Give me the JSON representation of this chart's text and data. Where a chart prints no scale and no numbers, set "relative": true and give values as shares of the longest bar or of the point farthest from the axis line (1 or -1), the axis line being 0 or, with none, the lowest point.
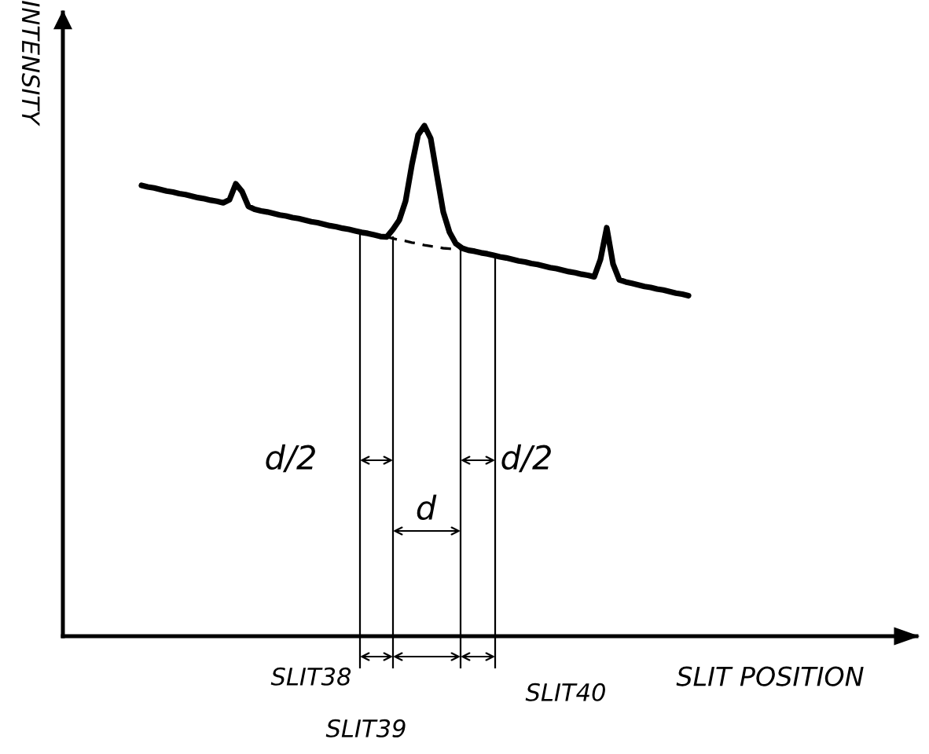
{
  "chart_data": {
    "type": "line",
    "relative": true,
    "xlabel": "SLIT POSITION",
    "ylabel": "INTENSITY",
    "marker": "none",
    "grid": false,
    "legend": false,
    "categories": [
      null,
      null,
      null,
      null,
      null,
      null,
      null,
      null,
      null,
      null,
      null,
      null,
      null,
      null,
      null,
      null,
      null,
      null,
      null,
      null,
      null,
      null,
      null,
      null,
      null,
      null,
      null,
      null,
      null,
      null,
      null,
      null,
      null,
      null,
      null,
      null,
      null,
      null,
      null,
      null,
      null,
      null,
      null,
      null,
      null,
      null,
      null,
      null,
      null,
      null,
      null,
      null,
      null,
      null,
      null,
      null,
      null,
      null,
      null,
      null,
      null,
      null,
      null,
      null,
      null,
      null,
      null,
      null,
      null,
      null,
      null,
      null,
      null,
      null,
      null,
      null,
      null,
      null,
      null,
      null,
      null,
      null,
      null,
      null,
      null,
      null,
      null,
      null
    ],
    "series": [
      {
        "color": "#000000",
        "line_style": "solid",
        "values": [
          0.883,
          0.88,
          0.878,
          0.875,
          0.872,
          0.87,
          0.867,
          0.865,
          0.862,
          0.859,
          0.857,
          0.854,
          0.852,
          0.849,
          0.855,
          0.886,
          0.871,
          0.842,
          0.836,
          0.833,
          0.831,
          0.828,
          0.825,
          0.823,
          0.82,
          0.818,
          0.815,
          0.812,
          0.81,
          0.807,
          0.804,
          0.802,
          0.799,
          0.797,
          0.794,
          0.791,
          0.789,
          0.786,
          0.783,
          0.782,
          0.797,
          0.815,
          0.852,
          0.923,
          0.982,
          1,
          0.975,
          0.902,
          0.831,
          0.791,
          0.769,
          0.76,
          0.756,
          0.754,
          0.751,
          0.749,
          0.746,
          0.743,
          0.741,
          0.738,
          0.735,
          0.733,
          0.73,
          0.728,
          0.725,
          0.722,
          0.72,
          0.717,
          0.714,
          0.712,
          0.709,
          0.707,
          0.704,
          0.738,
          0.8,
          0.729,
          0.698,
          0.694,
          0.691,
          0.688,
          0.685,
          0.683,
          0.68,
          0.678,
          0.675,
          0.672,
          0.67,
          0.667
        ]
      },
      {
        "color": "#000000",
        "line_style": "dashed",
        "values": [
          null,
          null,
          null,
          null,
          null,
          null,
          null,
          null,
          null,
          null,
          null,
          null,
          null,
          null,
          null,
          null,
          null,
          null,
          null,
          null,
          null,
          null,
          null,
          null,
          null,
          null,
          null,
          null,
          null,
          null,
          null,
          null,
          null,
          null,
          null,
          null,
          null,
          null,
          null,
          0.782,
          0.779,
          0.776,
          0.774,
          0.771,
          0.769,
          0.766,
          0.764,
          0.762,
          0.76,
          0.759,
          0.758,
          0.76,
          null,
          null,
          null,
          null,
          null,
          null,
          null,
          null,
          null,
          null,
          null,
          null,
          null,
          null,
          null,
          null,
          null,
          null,
          null,
          null,
          null,
          null,
          null,
          null,
          null,
          null,
          null,
          null,
          null,
          null,
          null,
          null,
          null,
          null,
          null,
          null
        ]
      }
    ],
    "annotations": [
      "d/2",
      "d",
      "d/2",
      "SLIT38",
      "SLIT39",
      "SLIT40"
    ]
  }
}
